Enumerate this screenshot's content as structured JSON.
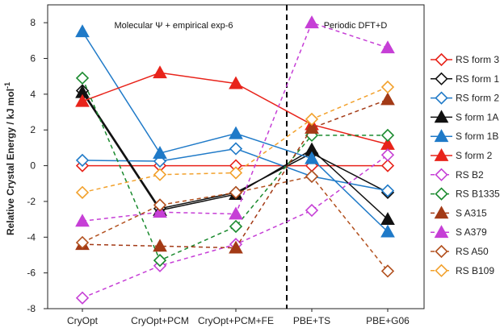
{
  "chart_data": {
    "type": "line",
    "title": "",
    "ylabel": "Relative Crystal Energy / kJ mol",
    "ylabel_superscript": "-1",
    "xlabel": "",
    "categories": [
      "CryOpt",
      "CryOpt+PCM",
      "CryOpt+PCM+FE",
      "PBE+TS",
      "PBE+G06"
    ],
    "ylim": [
      -8,
      9
    ],
    "yticks": [
      -8,
      -6,
      -4,
      -2,
      0,
      2,
      4,
      6,
      8
    ],
    "grid": false,
    "legend_position": "right",
    "region_labels": [
      "Molecular Ψ + empirical exp-6",
      "Periodic DFT+D"
    ],
    "region_divider_after_category": 2,
    "series": [
      {
        "name": "RS form 3",
        "color": "#e8231a",
        "dash": "solid",
        "marker": "diamond-open",
        "values": [
          0.0,
          0.0,
          0.0,
          0.0,
          0.0
        ]
      },
      {
        "name": "RS form 1",
        "color": "#111111",
        "dash": "solid",
        "marker": "diamond-open",
        "values": [
          4.2,
          -2.4,
          -1.5,
          0.7,
          -1.5
        ]
      },
      {
        "name": "RS form 2",
        "color": "#1f7ac8",
        "dash": "solid",
        "marker": "diamond-open",
        "values": [
          0.3,
          0.25,
          0.95,
          -0.6,
          -1.4
        ]
      },
      {
        "name": "S form 1A",
        "color": "#111111",
        "dash": "solid",
        "marker": "triangle-filled",
        "values": [
          4.1,
          -2.5,
          -1.6,
          0.9,
          -3.0
        ]
      },
      {
        "name": "S form 1B",
        "color": "#1f7ac8",
        "dash": "solid",
        "marker": "triangle-filled",
        "values": [
          7.5,
          0.7,
          1.8,
          0.4,
          -3.7
        ]
      },
      {
        "name": "S form 2",
        "color": "#e8231a",
        "dash": "solid",
        "marker": "triangle-filled",
        "values": [
          3.6,
          5.2,
          4.6,
          2.3,
          1.2
        ]
      },
      {
        "name": "RS B2",
        "color": "#c63fd6",
        "dash": "dashed",
        "marker": "diamond-open",
        "values": [
          -7.4,
          -5.6,
          -4.4,
          -2.5,
          0.6
        ]
      },
      {
        "name": "RS B1335",
        "color": "#1a8a2e",
        "dash": "dashed",
        "marker": "diamond-open",
        "values": [
          4.9,
          -5.3,
          -3.4,
          1.7,
          1.7
        ]
      },
      {
        "name": "S A315",
        "color": "#a33a16",
        "dash": "dashed",
        "marker": "triangle-filled",
        "values": [
          -4.4,
          -4.5,
          -4.6,
          2.1,
          3.7
        ]
      },
      {
        "name": "S A379",
        "color": "#c63fd6",
        "dash": "dashed",
        "marker": "triangle-filled",
        "values": [
          -3.1,
          -2.6,
          -2.7,
          8.0,
          6.6
        ]
      },
      {
        "name": "RS A50",
        "color": "#b2501e",
        "dash": "dashed",
        "marker": "diamond-open",
        "values": [
          -4.3,
          -2.2,
          -1.5,
          -0.6,
          -5.9
        ]
      },
      {
        "name": "RS B109",
        "color": "#f2a12c",
        "dash": "dashed",
        "marker": "diamond-open",
        "values": [
          -1.5,
          -0.5,
          -0.4,
          2.6,
          4.4
        ]
      }
    ]
  }
}
